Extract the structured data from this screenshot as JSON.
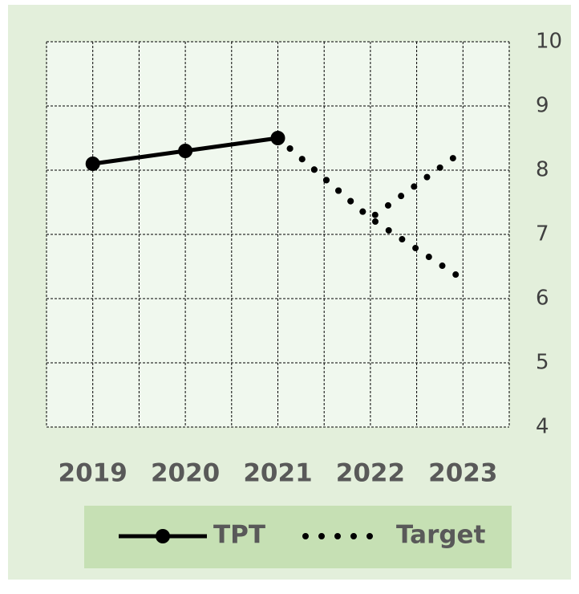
{
  "chart_data": {
    "type": "line",
    "categories": [
      "2019",
      "2020",
      "2021",
      "2022",
      "2023"
    ],
    "series": [
      {
        "name": "TPT",
        "color": "#000000",
        "style": "solid-marker",
        "values": [
          8.1,
          8.3,
          8.5,
          null,
          null
        ]
      },
      {
        "name": "Target",
        "color": "#000000",
        "style": "dotted",
        "values": [
          null,
          null,
          8.5,
          7.25,
          6.3
        ]
      },
      {
        "color": "#000000",
        "style": "dotted",
        "values": [
          null,
          null,
          8.5,
          7.25,
          8.3
        ]
      }
    ],
    "ylim": [
      4,
      10
    ],
    "yticks": [
      4,
      5,
      6,
      7,
      8,
      9,
      10
    ],
    "y_axis_side": "right",
    "grid": true,
    "legend": "bottom"
  }
}
